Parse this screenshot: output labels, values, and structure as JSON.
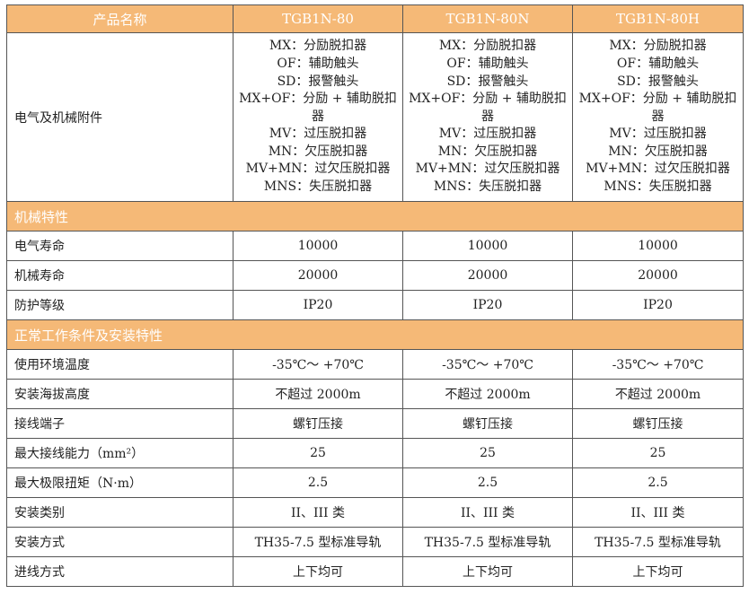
{
  "header": {
    "label": "产品名称",
    "models": [
      "TGB1N-80",
      "TGB1N-80N",
      "TGB1N-80H"
    ]
  },
  "accessories": {
    "label": "电气及机械附件",
    "items": [
      "MX：分励脱扣器",
      "OF：辅助触头",
      "SD：报警触头",
      "MX+OF：分励 + 辅助脱扣器",
      "MV：过压脱扣器",
      "MN：欠压脱扣器",
      "MV+MN：过欠压脱扣器",
      "MNS：失压脱扣器"
    ]
  },
  "sections": [
    {
      "title": "机械特性",
      "rows": [
        {
          "label": "电气寿命",
          "values": [
            "10000",
            "10000",
            "10000"
          ]
        },
        {
          "label": "机械寿命",
          "values": [
            "20000",
            "20000",
            "20000"
          ]
        },
        {
          "label": "防护等级",
          "values": [
            "IP20",
            "IP20",
            "IP20"
          ]
        }
      ]
    },
    {
      "title": "正常工作条件及安装特性",
      "rows": [
        {
          "label": "使用环境温度",
          "values": [
            "-35℃～ +70℃",
            "-35℃～ +70℃",
            "-35℃～ +70℃"
          ]
        },
        {
          "label": "安装海拔高度",
          "values": [
            "不超过 2000m",
            "不超过 2000m",
            "不超过 2000m"
          ]
        },
        {
          "label": "接线端子",
          "values": [
            "螺钉压接",
            "螺钉压接",
            "螺钉压接"
          ]
        },
        {
          "label": "最大接线能力（mm²）",
          "values": [
            "25",
            "25",
            "25"
          ]
        },
        {
          "label": "最大极限扭矩（N·m）",
          "values": [
            "2.5",
            "2.5",
            "2.5"
          ]
        },
        {
          "label": "安装类别",
          "values": [
            "II、III 类",
            "II、III 类",
            "II、III 类"
          ]
        },
        {
          "label": "安装方式",
          "values": [
            "TH35-7.5 型标准导轨",
            "TH35-7.5 型标准导轨",
            "TH35-7.5 型标准导轨"
          ]
        },
        {
          "label": "进线方式",
          "values": [
            "上下均可",
            "上下均可",
            "上下均可"
          ]
        }
      ]
    }
  ],
  "colors": {
    "header_bg": "#F5B977",
    "header_text": "#ffffff"
  }
}
